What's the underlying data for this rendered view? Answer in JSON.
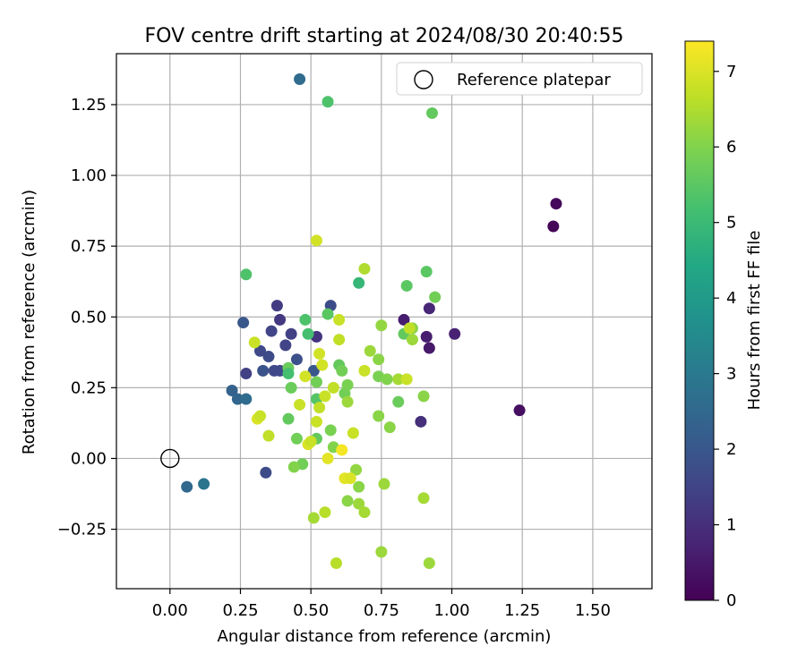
{
  "chart_data": {
    "type": "scatter",
    "title": "FOV centre drift starting at 2024/08/30 20:40:55",
    "xlabel": "Angular distance from reference (arcmin)",
    "ylabel": "Rotation from reference (arcmin)",
    "xlim": [
      -0.19,
      1.71
    ],
    "ylim": [
      -0.46,
      1.43
    ],
    "xticks": [
      0.0,
      0.25,
      0.5,
      0.75,
      1.0,
      1.25,
      1.5
    ],
    "xtick_labels": [
      "0.00",
      "0.25",
      "0.50",
      "0.75",
      "1.00",
      "1.25",
      "1.50"
    ],
    "yticks": [
      -0.25,
      0.0,
      0.25,
      0.5,
      0.75,
      1.0,
      1.25
    ],
    "ytick_labels": [
      "−0.25",
      "0.00",
      "0.25",
      "0.50",
      "0.75",
      "1.00",
      "1.25"
    ],
    "grid": true,
    "legend": {
      "placement": "top-right",
      "entries": [
        "Reference platepar"
      ]
    },
    "reference_point": {
      "x": 0.0,
      "y": 0.0
    },
    "colorbar": {
      "label": "Hours from first FF file",
      "range": [
        0,
        7.4
      ],
      "ticks": [
        0,
        1,
        2,
        3,
        4,
        5,
        6,
        7
      ],
      "tick_labels": [
        "0",
        "1",
        "2",
        "3",
        "4",
        "5",
        "6",
        "7"
      ],
      "colormap": "viridis"
    },
    "points": [
      {
        "x": 1.36,
        "y": 0.82,
        "c": 0.1
      },
      {
        "x": 1.37,
        "y": 0.9,
        "c": 0.15
      },
      {
        "x": 1.24,
        "y": 0.17,
        "c": 0.3
      },
      {
        "x": 0.89,
        "y": 0.13,
        "c": 1.0
      },
      {
        "x": 1.01,
        "y": 0.44,
        "c": 0.7
      },
      {
        "x": 0.91,
        "y": 0.43,
        "c": 0.6
      },
      {
        "x": 0.92,
        "y": 0.39,
        "c": 0.5
      },
      {
        "x": 0.92,
        "y": 0.53,
        "c": 0.8
      },
      {
        "x": 0.83,
        "y": 0.49,
        "c": 0.6
      },
      {
        "x": 0.52,
        "y": 0.43,
        "c": 1.1
      },
      {
        "x": 0.38,
        "y": 0.54,
        "c": 1.3
      },
      {
        "x": 0.39,
        "y": 0.49,
        "c": 1.2
      },
      {
        "x": 0.36,
        "y": 0.45,
        "c": 1.5
      },
      {
        "x": 0.43,
        "y": 0.44,
        "c": 1.4
      },
      {
        "x": 0.41,
        "y": 0.4,
        "c": 1.5
      },
      {
        "x": 0.32,
        "y": 0.38,
        "c": 1.6
      },
      {
        "x": 0.35,
        "y": 0.36,
        "c": 1.7
      },
      {
        "x": 0.45,
        "y": 0.35,
        "c": 1.8
      },
      {
        "x": 0.37,
        "y": 0.31,
        "c": 1.6
      },
      {
        "x": 0.33,
        "y": 0.31,
        "c": 1.9
      },
      {
        "x": 0.27,
        "y": 0.3,
        "c": 1.4
      },
      {
        "x": 0.39,
        "y": 0.31,
        "c": 1.6
      },
      {
        "x": 0.26,
        "y": 0.48,
        "c": 2.0
      },
      {
        "x": 0.57,
        "y": 0.54,
        "c": 1.7
      },
      {
        "x": 0.34,
        "y": -0.05,
        "c": 1.7
      },
      {
        "x": 0.22,
        "y": 0.24,
        "c": 2.3
      },
      {
        "x": 0.24,
        "y": 0.21,
        "c": 2.4
      },
      {
        "x": 0.27,
        "y": 0.21,
        "c": 2.6
      },
      {
        "x": 0.06,
        "y": -0.1,
        "c": 2.5
      },
      {
        "x": 0.12,
        "y": -0.09,
        "c": 2.8
      },
      {
        "x": 0.46,
        "y": 1.34,
        "c": 2.6
      },
      {
        "x": 0.51,
        "y": 0.31,
        "c": 2.0
      },
      {
        "x": 0.56,
        "y": 1.26,
        "c": 5.3
      },
      {
        "x": 0.93,
        "y": 1.22,
        "c": 5.6
      },
      {
        "x": 0.27,
        "y": 0.65,
        "c": 5.3
      },
      {
        "x": 0.67,
        "y": 0.62,
        "c": 4.9
      },
      {
        "x": 0.48,
        "y": 0.49,
        "c": 5.3
      },
      {
        "x": 0.56,
        "y": 0.51,
        "c": 5.5
      },
      {
        "x": 0.49,
        "y": 0.44,
        "c": 5.2
      },
      {
        "x": 0.84,
        "y": 0.61,
        "c": 5.5
      },
      {
        "x": 0.91,
        "y": 0.66,
        "c": 5.5
      },
      {
        "x": 0.94,
        "y": 0.57,
        "c": 5.8
      },
      {
        "x": 0.83,
        "y": 0.44,
        "c": 5.6
      },
      {
        "x": 0.86,
        "y": 0.46,
        "c": 6.1
      },
      {
        "x": 0.86,
        "y": 0.42,
        "c": 6.3
      },
      {
        "x": 0.42,
        "y": 0.32,
        "c": 5.7
      },
      {
        "x": 0.42,
        "y": 0.3,
        "c": 5.2
      },
      {
        "x": 0.43,
        "y": 0.25,
        "c": 5.7
      },
      {
        "x": 0.42,
        "y": 0.14,
        "c": 5.6
      },
      {
        "x": 0.45,
        "y": 0.07,
        "c": 5.8
      },
      {
        "x": 0.47,
        "y": -0.02,
        "c": 5.8
      },
      {
        "x": 0.44,
        "y": -0.03,
        "c": 6.0
      },
      {
        "x": 0.52,
        "y": 0.21,
        "c": 5.4
      },
      {
        "x": 0.52,
        "y": 0.27,
        "c": 5.8
      },
      {
        "x": 0.52,
        "y": 0.07,
        "c": 5.6
      },
      {
        "x": 0.57,
        "y": 0.1,
        "c": 5.9
      },
      {
        "x": 0.58,
        "y": 0.04,
        "c": 6.0
      },
      {
        "x": 0.6,
        "y": 0.33,
        "c": 5.6
      },
      {
        "x": 0.61,
        "y": 0.31,
        "c": 5.8
      },
      {
        "x": 0.62,
        "y": 0.23,
        "c": 5.8
      },
      {
        "x": 0.63,
        "y": 0.26,
        "c": 5.9
      },
      {
        "x": 0.63,
        "y": 0.2,
        "c": 6.3
      },
      {
        "x": 0.63,
        "y": -0.15,
        "c": 6.1
      },
      {
        "x": 0.66,
        "y": -0.04,
        "c": 6.2
      },
      {
        "x": 0.67,
        "y": -0.1,
        "c": 6.1
      },
      {
        "x": 0.67,
        "y": -0.16,
        "c": 6.3
      },
      {
        "x": 0.69,
        "y": -0.19,
        "c": 6.4
      },
      {
        "x": 0.71,
        "y": 0.38,
        "c": 6.3
      },
      {
        "x": 0.74,
        "y": 0.35,
        "c": 6.1
      },
      {
        "x": 0.69,
        "y": 0.67,
        "c": 6.5
      },
      {
        "x": 0.75,
        "y": 0.47,
        "c": 6.2
      },
      {
        "x": 0.74,
        "y": 0.29,
        "c": 5.9
      },
      {
        "x": 0.77,
        "y": 0.28,
        "c": 6.0
      },
      {
        "x": 0.74,
        "y": 0.15,
        "c": 6.1
      },
      {
        "x": 0.78,
        "y": 0.11,
        "c": 6.1
      },
      {
        "x": 0.81,
        "y": 0.2,
        "c": 5.7
      },
      {
        "x": 0.81,
        "y": 0.28,
        "c": 6.4
      },
      {
        "x": 0.76,
        "y": -0.09,
        "c": 6.3
      },
      {
        "x": 0.75,
        "y": -0.33,
        "c": 6.3
      },
      {
        "x": 0.9,
        "y": 0.22,
        "c": 6.1
      },
      {
        "x": 0.9,
        "y": -0.14,
        "c": 6.4
      },
      {
        "x": 0.92,
        "y": -0.37,
        "c": 6.3
      },
      {
        "x": 0.59,
        "y": -0.37,
        "c": 6.6
      },
      {
        "x": 0.55,
        "y": -0.19,
        "c": 6.6
      },
      {
        "x": 0.51,
        "y": -0.21,
        "c": 6.4
      },
      {
        "x": 0.52,
        "y": 0.77,
        "c": 6.9
      },
      {
        "x": 0.3,
        "y": 0.41,
        "c": 6.8
      },
      {
        "x": 0.31,
        "y": 0.14,
        "c": 7.0
      },
      {
        "x": 0.32,
        "y": 0.15,
        "c": 6.8
      },
      {
        "x": 0.35,
        "y": 0.08,
        "c": 6.7
      },
      {
        "x": 0.46,
        "y": 0.19,
        "c": 6.8
      },
      {
        "x": 0.48,
        "y": 0.29,
        "c": 6.9
      },
      {
        "x": 0.49,
        "y": 0.05,
        "c": 7.0
      },
      {
        "x": 0.5,
        "y": 0.06,
        "c": 6.8
      },
      {
        "x": 0.52,
        "y": 0.13,
        "c": 6.8
      },
      {
        "x": 0.53,
        "y": 0.18,
        "c": 6.7
      },
      {
        "x": 0.53,
        "y": 0.37,
        "c": 6.9
      },
      {
        "x": 0.54,
        "y": 0.33,
        "c": 6.9
      },
      {
        "x": 0.55,
        "y": 0.22,
        "c": 6.8
      },
      {
        "x": 0.56,
        "y": 0.0,
        "c": 7.1
      },
      {
        "x": 0.58,
        "y": 0.25,
        "c": 6.7
      },
      {
        "x": 0.6,
        "y": 0.49,
        "c": 6.8
      },
      {
        "x": 0.6,
        "y": 0.42,
        "c": 6.7
      },
      {
        "x": 0.61,
        "y": 0.03,
        "c": 7.3
      },
      {
        "x": 0.62,
        "y": -0.07,
        "c": 7.1
      },
      {
        "x": 0.64,
        "y": -0.07,
        "c": 7.0
      },
      {
        "x": 0.65,
        "y": 0.09,
        "c": 6.8
      },
      {
        "x": 0.69,
        "y": 0.31,
        "c": 6.8
      },
      {
        "x": 0.84,
        "y": 0.28,
        "c": 6.8
      },
      {
        "x": 0.85,
        "y": 0.46,
        "c": 6.7
      }
    ]
  }
}
